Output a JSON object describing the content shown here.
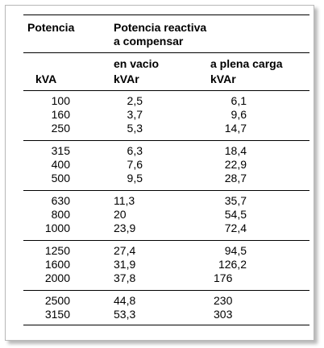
{
  "table": {
    "header": {
      "col1_title": "Potencia",
      "col1_unit": "kVA",
      "col2_title_line1": "Potencia reactiva",
      "col2_title_line2": "a compensar",
      "sub1_label": "en vacio",
      "sub1_unit": "kVAr",
      "sub2_label": "a plena carga",
      "sub2_unit": "kVAr"
    },
    "groups": [
      {
        "rows": [
          {
            "kva": "100",
            "no_load": "2,5",
            "full_load": "6,1"
          },
          {
            "kva": "160",
            "no_load": "3,7",
            "full_load": "9,6"
          },
          {
            "kva": "250",
            "no_load": "5,3",
            "full_load": "14,7"
          }
        ]
      },
      {
        "rows": [
          {
            "kva": "315",
            "no_load": "6,3",
            "full_load": "18,4"
          },
          {
            "kva": "400",
            "no_load": "7,6",
            "full_load": "22,9"
          },
          {
            "kva": "500",
            "no_load": "9,5",
            "full_load": "28,7"
          }
        ]
      },
      {
        "rows": [
          {
            "kva": "630",
            "no_load": "11,3",
            "full_load": "35,7"
          },
          {
            "kva": "800",
            "no_load": "20",
            "full_load": "54,5"
          },
          {
            "kva": "1000",
            "no_load": "23,9",
            "full_load": "72,4"
          }
        ]
      },
      {
        "rows": [
          {
            "kva": "1250",
            "no_load": "27,4",
            "full_load": "94,5"
          },
          {
            "kva": "1600",
            "no_load": "31,9",
            "full_load": "126,2"
          },
          {
            "kva": "2000",
            "no_load": "37,8",
            "full_load": "176"
          }
        ]
      },
      {
        "rows": [
          {
            "kva": "2500",
            "no_load": "44,8",
            "full_load": "230"
          },
          {
            "kva": "3150",
            "no_load": "53,3",
            "full_load": "303"
          }
        ]
      }
    ]
  }
}
